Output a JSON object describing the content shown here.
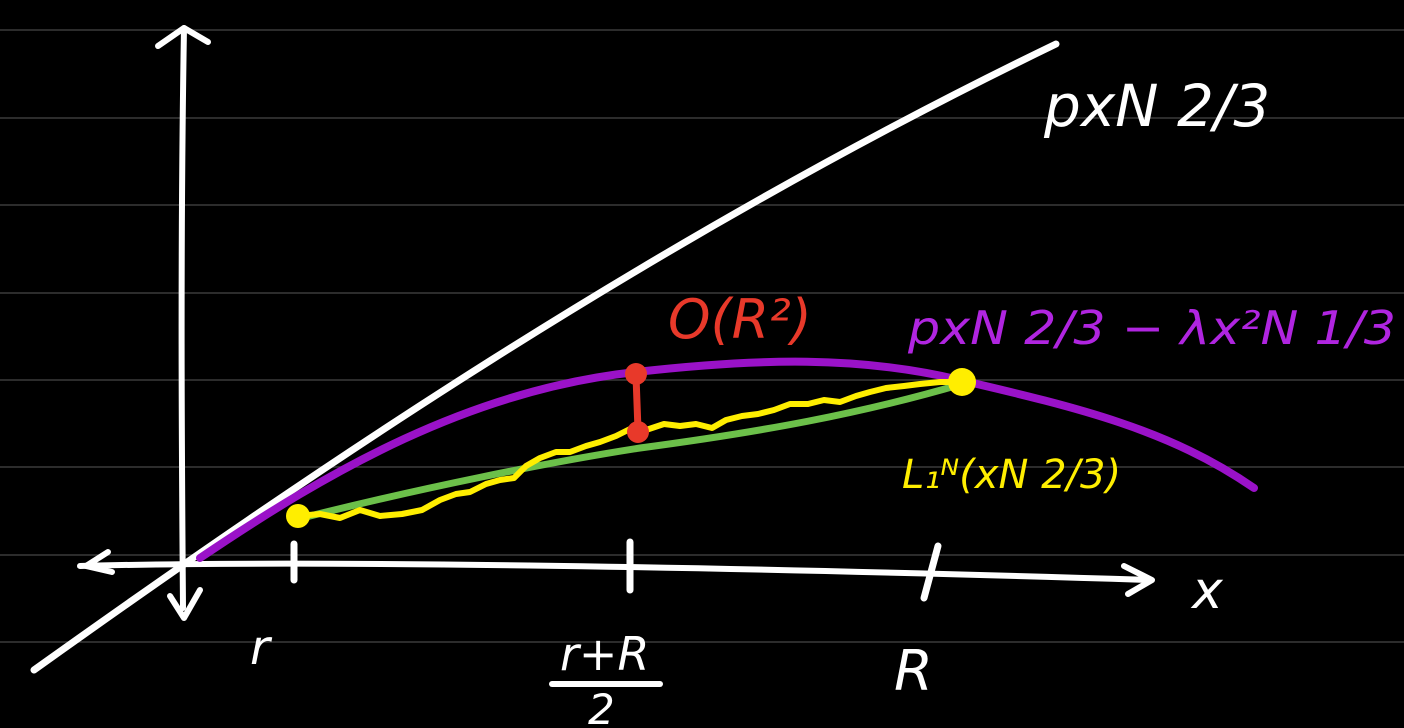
{
  "colors": {
    "background": "#000000",
    "rule_lines": "#3a3a3a",
    "ink": "#ffffff",
    "parabola": "#9a12c8",
    "path": "#ffee00",
    "chord": "#6cc04a",
    "error_bar": "#e8392a"
  },
  "labels": {
    "line": "pxN 2/3",
    "parabola": "pxN 2/3 − λx²N 1/3",
    "big_o": "O(R²)",
    "path": "L₁ᴺ(xN 2/3)",
    "x_axis": "x",
    "tick_r": "r",
    "tick_mid_numerator": "r+R",
    "tick_mid_denominator": "2",
    "tick_R": "R"
  }
}
